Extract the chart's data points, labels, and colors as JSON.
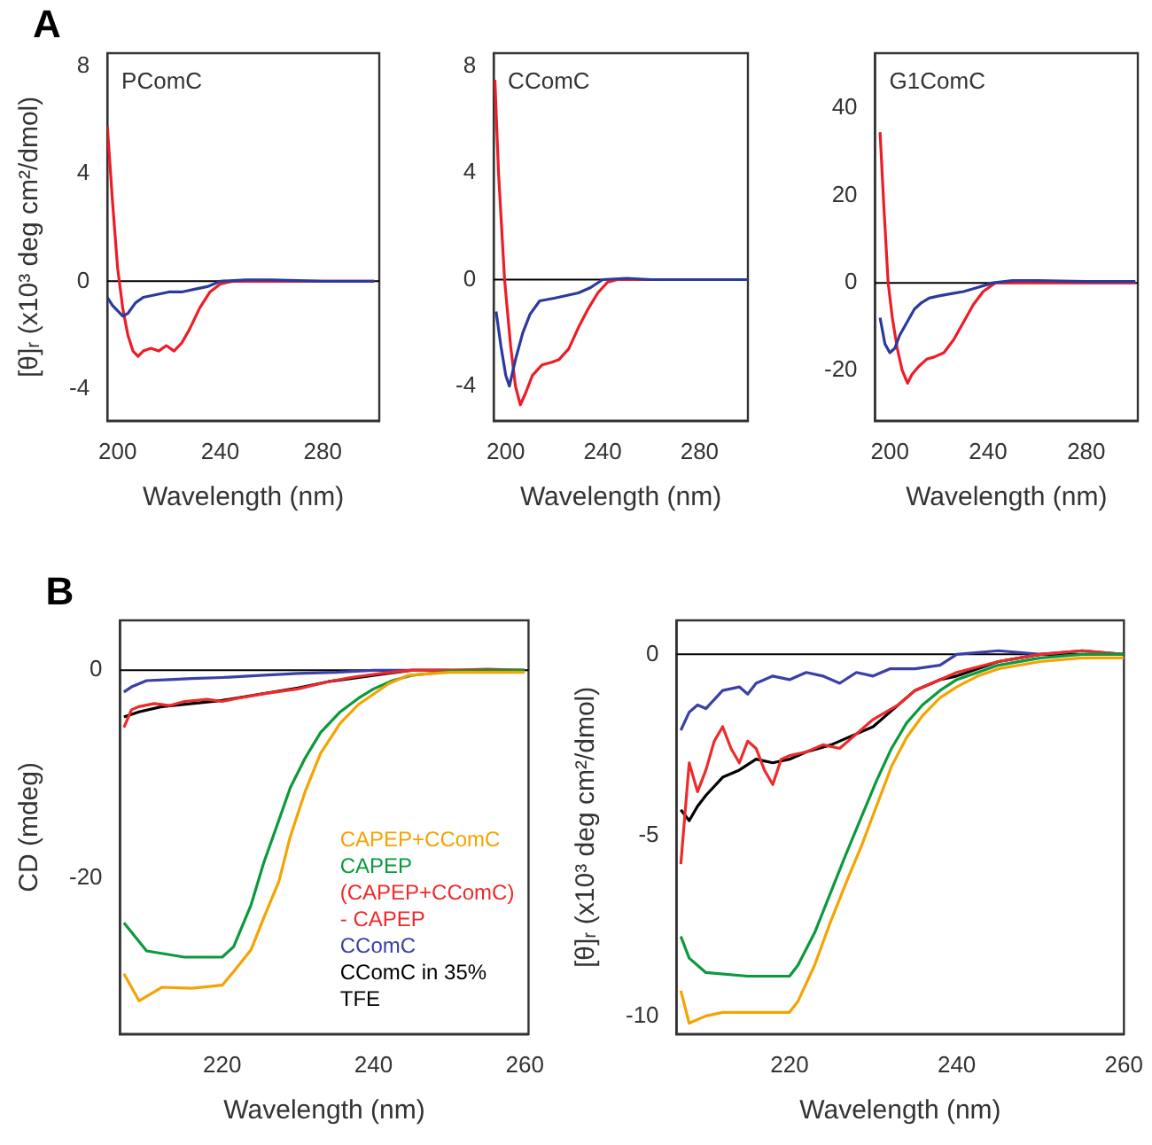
{
  "chart_data": [
    {
      "type": "line",
      "title": "PComC",
      "annotations": [
        "A"
      ],
      "xlabel": "Wavelength (nm)",
      "ylabel": "[θ]ᵣ (x10³ deg cm²/dmol)",
      "xlim": [
        196,
        302
      ],
      "ylim": [
        -5.2,
        8.5
      ],
      "xticks": [
        200,
        240,
        280
      ],
      "yticks": [
        8,
        4,
        0,
        -4
      ],
      "marker": "none",
      "ref_lines": [
        {
          "axis": "y",
          "value": 0,
          "color": "#000000"
        }
      ],
      "series": [
        {
          "color": "#2b3a9e",
          "x": [
            196,
            198,
            200,
            202,
            204,
            207,
            210,
            215,
            220,
            225,
            230,
            235,
            240,
            250,
            260,
            280,
            300
          ],
          "values": [
            -0.6,
            -0.9,
            -1.1,
            -1.3,
            -1.2,
            -0.8,
            -0.6,
            -0.5,
            -0.4,
            -0.4,
            -0.3,
            -0.2,
            0,
            0.05,
            0.05,
            0,
            0
          ]
        },
        {
          "color": "#ee1c25",
          "x": [
            196,
            198,
            200,
            202,
            204,
            206,
            208,
            210,
            213,
            216,
            219,
            222,
            225,
            228,
            232,
            236,
            240,
            245,
            260,
            280,
            300
          ],
          "values": [
            5.8,
            3,
            0.5,
            -1,
            -2,
            -2.6,
            -2.8,
            -2.6,
            -2.5,
            -2.6,
            -2.4,
            -2.6,
            -2.3,
            -1.8,
            -1,
            -0.4,
            -0.1,
            0,
            0,
            0,
            0
          ]
        }
      ]
    },
    {
      "type": "line",
      "title": "CComC",
      "xlabel": "Wavelength (nm)",
      "xlim": [
        195,
        300
      ],
      "ylim": [
        -5.3,
        8.5
      ],
      "xticks": [
        200,
        240,
        280
      ],
      "yticks": [
        8,
        4,
        0,
        -4
      ],
      "marker": "none",
      "ref_lines": [
        {
          "axis": "y",
          "value": 0,
          "color": "#000000"
        }
      ],
      "series": [
        {
          "color": "#2b3a9e",
          "x": [
            196,
            198,
            200,
            201.5,
            204,
            207,
            210,
            214,
            220,
            225,
            230,
            235,
            240,
            250,
            260,
            280,
            300
          ],
          "values": [
            -1.2,
            -2.5,
            -3.6,
            -4,
            -3,
            -2,
            -1.3,
            -0.8,
            -0.7,
            -0.6,
            -0.5,
            -0.3,
            0,
            0.05,
            0,
            0,
            0
          ]
        },
        {
          "color": "#ee1c25",
          "x": [
            195.5,
            197,
            199.5,
            202,
            204,
            206,
            208,
            211,
            215,
            219,
            222,
            226,
            230,
            234,
            238,
            242,
            246,
            260,
            280,
            300
          ],
          "values": [
            7.5,
            4,
            0,
            -2.5,
            -4,
            -4.7,
            -4.3,
            -3.6,
            -3.2,
            -3.1,
            -3,
            -2.6,
            -1.8,
            -1.1,
            -0.5,
            -0.1,
            0,
            0,
            0,
            0
          ]
        }
      ]
    },
    {
      "type": "line",
      "title": "G1ComC",
      "xlabel": "Wavelength (nm)",
      "xlim": [
        194,
        301
      ],
      "ylim": [
        -31.6,
        52.6
      ],
      "xticks": [
        200,
        240,
        280
      ],
      "yticks": [
        40,
        20,
        0,
        -20
      ],
      "marker": "none",
      "ref_lines": [
        {
          "axis": "y",
          "value": 0,
          "color": "#000000"
        }
      ],
      "series": [
        {
          "color": "#2b3a9e",
          "x": [
            196,
            198,
            200,
            202,
            204,
            207,
            210,
            213,
            216,
            220,
            225,
            230,
            235,
            242,
            250,
            260,
            280,
            300
          ],
          "values": [
            -8,
            -14,
            -16,
            -15,
            -12,
            -9,
            -6,
            -4.5,
            -3.5,
            -3,
            -2.5,
            -2,
            -1.2,
            0,
            0.5,
            0.5,
            0.3,
            0.3
          ]
        },
        {
          "color": "#ee1c25",
          "x": [
            196,
            197.5,
            199.3,
            201,
            203,
            205,
            207.2,
            209,
            212,
            215,
            218,
            222,
            226,
            230,
            234,
            238,
            243,
            250,
            260,
            280,
            300
          ],
          "values": [
            34.5,
            18,
            0,
            -8,
            -15,
            -20,
            -23,
            -21,
            -19,
            -17.5,
            -17,
            -16,
            -13,
            -9,
            -5,
            -2,
            0,
            0,
            0,
            0,
            0
          ]
        }
      ]
    },
    {
      "type": "line",
      "annotations": [
        "B"
      ],
      "xlabel": "Wavelength (nm)",
      "ylabel": "CD (mdeg)",
      "xlim": [
        206.5,
        260.5
      ],
      "ylim": [
        -35,
        4.8
      ],
      "xticks": [
        220,
        240,
        260
      ],
      "yticks": [
        0,
        -20
      ],
      "marker": "none",
      "legend": "bottom right",
      "ref_lines": [
        {
          "axis": "y",
          "value": 0,
          "color": "#000000"
        }
      ],
      "series": [
        {
          "name": "CAPEP+CComC",
          "color": "#f5a300",
          "x": [
            207,
            209,
            212,
            216,
            220,
            221.5,
            223.8,
            225.5,
            227.5,
            229,
            231,
            233,
            235.6,
            238,
            240,
            242,
            244.5,
            250,
            255,
            260
          ],
          "values": [
            -29.2,
            -31.8,
            -30.5,
            -30.6,
            -30.3,
            -29,
            -26.9,
            -23.8,
            -20.3,
            -16,
            -11.6,
            -8,
            -5.1,
            -3.3,
            -2.3,
            -1.3,
            -0.5,
            -0.2,
            -0.2,
            -0.2
          ]
        },
        {
          "name": "CAPEP",
          "color": "#0a9a3c",
          "x": [
            207,
            210,
            215,
            220,
            221.5,
            223.8,
            225.5,
            227.5,
            229,
            231,
            233,
            235.6,
            238,
            240,
            242.5,
            245,
            250,
            255,
            260
          ],
          "values": [
            -24.3,
            -27,
            -27.6,
            -27.6,
            -26.6,
            -22.6,
            -18.5,
            -14.4,
            -11.3,
            -8.4,
            -6,
            -4,
            -2.7,
            -1.8,
            -1,
            -0.5,
            -0.1,
            0,
            0
          ]
        },
        {
          "name": "(CAPEP+CComC) - CAPEP",
          "color": "#ee2a2a",
          "x": [
            207,
            208,
            209,
            211,
            213,
            215,
            218,
            220,
            222,
            226,
            230,
            234,
            237,
            241,
            245,
            250,
            255,
            260
          ],
          "values": [
            -5.5,
            -3.8,
            -3.5,
            -3.2,
            -3.4,
            -3,
            -2.8,
            -3,
            -2.7,
            -2.2,
            -1.8,
            -1.1,
            -0.7,
            -0.3,
            0,
            0,
            0.1,
            0
          ]
        },
        {
          "name": "CComC",
          "color": "#3b3fa8",
          "x": [
            207,
            208,
            210,
            213,
            216,
            220,
            225,
            230,
            235,
            240,
            245,
            250
          ],
          "values": [
            -2.1,
            -1.6,
            -1,
            -0.9,
            -0.8,
            -0.7,
            -0.5,
            -0.3,
            -0.2,
            0,
            0,
            0
          ]
        },
        {
          "name": "CComC in 35% TFE",
          "color": "#000000",
          "x": [
            207,
            209,
            212,
            216,
            220,
            225,
            230,
            234,
            237,
            241,
            245,
            250,
            255,
            260
          ],
          "values": [
            -4.5,
            -4,
            -3.5,
            -3.2,
            -2.9,
            -2.3,
            -1.7,
            -1.1,
            -0.8,
            -0.4,
            0,
            0,
            0,
            0
          ]
        }
      ]
    },
    {
      "type": "line",
      "ylabel": "[θ]ᵣ (x10³ deg cm²/dmol)",
      "xlabel": "Wavelength (nm)",
      "xlim": [
        206.5,
        260
      ],
      "ylim": [
        -10.5,
        0.94
      ],
      "xticks": [
        220,
        240,
        260
      ],
      "yticks": [
        0,
        -5,
        -10
      ],
      "marker": "none",
      "ref_lines": [
        {
          "axis": "y",
          "value": 0,
          "color": "#000000"
        }
      ],
      "series": [
        {
          "color": "#f5a300",
          "x": [
            207,
            208,
            210,
            212,
            216,
            220,
            221,
            223,
            224.9,
            226.8,
            228.6,
            230.4,
            232.2,
            234,
            235.9,
            238,
            240,
            242.5,
            245,
            250,
            255,
            260
          ],
          "values": [
            -9.3,
            -10.2,
            -10,
            -9.9,
            -9.9,
            -9.9,
            -9.6,
            -8.6,
            -7.4,
            -6.3,
            -5.3,
            -4.2,
            -3.1,
            -2.3,
            -1.7,
            -1.2,
            -0.9,
            -0.6,
            -0.4,
            -0.2,
            -0.1,
            -0.1
          ]
        },
        {
          "color": "#0a9a3c",
          "x": [
            207,
            208,
            210,
            215,
            220,
            221,
            223,
            224.9,
            226.8,
            228.6,
            230.4,
            232.2,
            234,
            235.9,
            238,
            240,
            242.5,
            245,
            250,
            255,
            260
          ],
          "values": [
            -7.8,
            -8.4,
            -8.8,
            -8.9,
            -8.9,
            -8.6,
            -7.7,
            -6.6,
            -5.5,
            -4.5,
            -3.5,
            -2.6,
            -1.9,
            -1.4,
            -1,
            -0.7,
            -0.5,
            -0.3,
            -0.1,
            0,
            0
          ]
        },
        {
          "color": "#ee2a2a",
          "x": [
            207,
            208,
            209,
            210,
            211,
            212,
            213,
            214,
            215,
            216,
            217,
            218,
            219,
            220,
            222,
            224,
            226,
            228,
            230,
            233,
            235,
            238,
            240,
            245,
            250,
            255,
            260
          ],
          "values": [
            -5.8,
            -3,
            -3.8,
            -3.2,
            -2.4,
            -2,
            -2.6,
            -3,
            -2.4,
            -2.6,
            -3.2,
            -3.6,
            -2.9,
            -2.8,
            -2.7,
            -2.5,
            -2.6,
            -2.2,
            -1.8,
            -1.4,
            -1,
            -0.7,
            -0.5,
            -0.2,
            0,
            0.1,
            0
          ]
        },
        {
          "color": "#3b3fa8",
          "x": [
            207,
            208,
            209,
            210,
            212,
            214,
            215,
            216,
            218,
            220,
            222,
            224,
            226,
            228,
            230,
            232,
            235,
            238,
            240,
            245,
            250,
            255,
            260
          ],
          "values": [
            -2.1,
            -1.6,
            -1.4,
            -1.5,
            -1,
            -0.9,
            -1.1,
            -0.8,
            -0.6,
            -0.7,
            -0.5,
            -0.6,
            -0.8,
            -0.5,
            -0.6,
            -0.4,
            -0.4,
            -0.3,
            0,
            0.1,
            0,
            0.1,
            0
          ]
        },
        {
          "color": "#000000",
          "x": [
            207,
            208,
            209,
            210,
            212,
            214,
            216,
            218,
            220,
            222,
            225,
            228,
            230,
            232,
            235,
            238,
            240,
            245,
            250,
            255,
            260
          ],
          "values": [
            -4.3,
            -4.6,
            -4.2,
            -3.9,
            -3.4,
            -3.2,
            -2.9,
            -3,
            -2.9,
            -2.7,
            -2.5,
            -2.2,
            -2,
            -1.6,
            -1,
            -0.7,
            -0.6,
            -0.2,
            0,
            0,
            0
          ]
        }
      ]
    }
  ]
}
